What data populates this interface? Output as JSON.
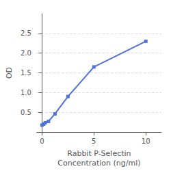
{
  "chart_data": {
    "type": "line",
    "x": [
      0,
      0.156,
      0.313,
      0.625,
      1.25,
      2.5,
      5,
      10
    ],
    "values": [
      0.175,
      0.2,
      0.235,
      0.27,
      0.46,
      0.9,
      1.65,
      2.3
    ],
    "marker": "square",
    "xlabel": "Rabbit P-Selectin\nConcentration (ng/ml)",
    "ylabel": "OD",
    "xlim": [
      -0.5,
      11.5
    ],
    "ylim": [
      0,
      3.0
    ],
    "xticks": [
      0,
      5,
      10
    ],
    "yticks": [
      0.5,
      {
        "value": 1.0,
        "label": "1.0"
      },
      1.5,
      {
        "value": 2.0,
        "label": "2.0"
      },
      2.5
    ],
    "grid": true
  }
}
